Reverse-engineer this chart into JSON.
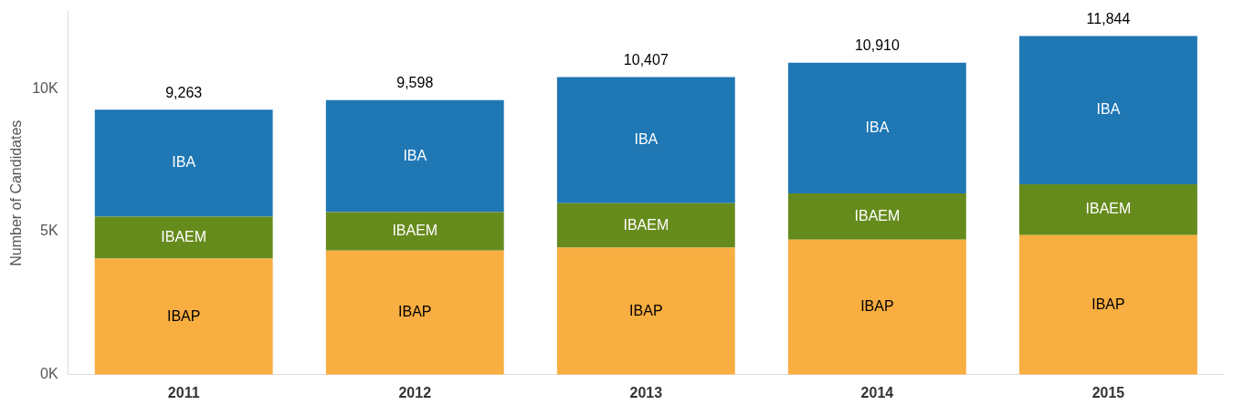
{
  "chart_data": {
    "type": "bar",
    "stacked": true,
    "ylabel": "Number of Candidates",
    "categories": [
      "2011",
      "2012",
      "2013",
      "2014",
      "2015"
    ],
    "series": [
      {
        "name": "IBAP",
        "color": "#f9ae41",
        "values": [
          4060,
          4340,
          4440,
          4720,
          4880
        ]
      },
      {
        "name": "IBAEM",
        "color": "#668b1d",
        "values": [
          1470,
          1350,
          1560,
          1620,
          1780
        ]
      },
      {
        "name": "IBA",
        "color": "#1f77b4",
        "values": [
          3733,
          3908,
          4407,
          4570,
          5184
        ]
      }
    ],
    "totals": [
      "9,263",
      "9,598",
      "10,407",
      "10,910",
      "11,844"
    ],
    "ylim": [
      0,
      12700
    ],
    "yticks": [
      {
        "value": 0,
        "label": "0K"
      },
      {
        "value": 5000,
        "label": "5K"
      },
      {
        "value": 10000,
        "label": "10K"
      }
    ],
    "grid": false,
    "legend": false
  }
}
